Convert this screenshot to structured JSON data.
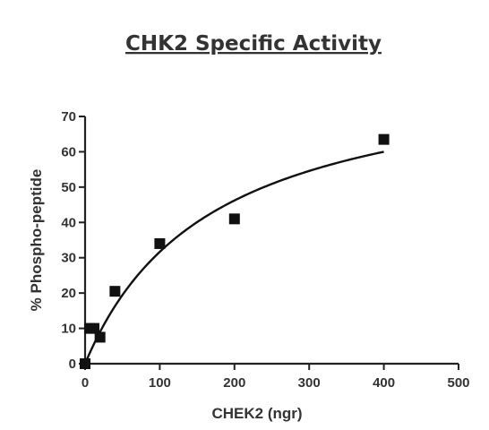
{
  "chart_data": {
    "type": "scatter",
    "title": "CHK2 Specific Activity",
    "xlabel": "CHEK2 (ngr)",
    "ylabel": "% Phospho-peptide",
    "xlim": [
      0,
      500
    ],
    "ylim": [
      0,
      70
    ],
    "x_ticks": [
      0,
      100,
      200,
      300,
      400,
      500
    ],
    "y_ticks": [
      0,
      10,
      20,
      30,
      40,
      50,
      60,
      70
    ],
    "x_tick_labels": [
      "0",
      "100",
      "200",
      "300",
      "400",
      "500"
    ],
    "y_tick_labels": [
      "0",
      "10",
      "20",
      "30",
      "40",
      "50",
      "60",
      "70"
    ],
    "grid": false,
    "legend": "none",
    "series": [
      {
        "marker": "square",
        "color": "#111111",
        "x": [
          0,
          6,
          12,
          20,
          40,
          100,
          200,
          400
        ],
        "y": [
          0,
          10,
          10,
          7.5,
          20.5,
          34,
          41,
          63.5
        ]
      }
    ],
    "fit_curve": {
      "model": "hyperbola",
      "equation": "y = Bmax * x / (Kd + x)",
      "Bmax": 85.5,
      "Kd": 170,
      "x_range": [
        0,
        400
      ],
      "color": "#111111"
    }
  }
}
